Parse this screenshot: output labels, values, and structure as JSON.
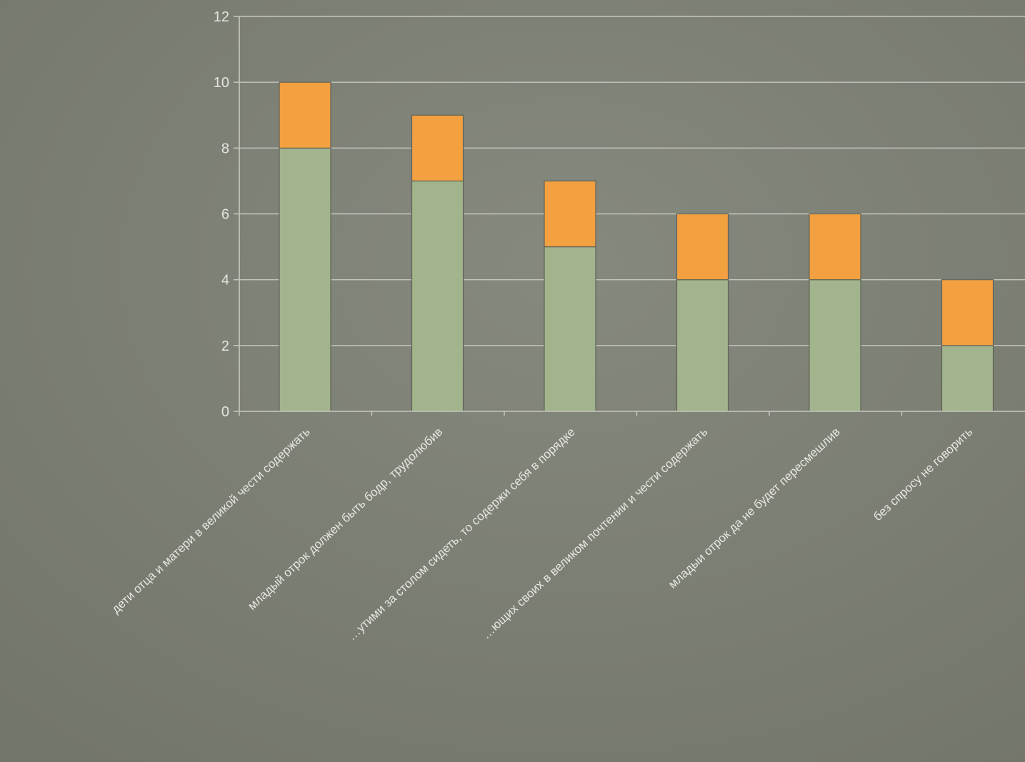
{
  "chart_data": {
    "type": "bar",
    "stacked": true,
    "categories": [
      "дети отца и матери в великой чести содержать",
      "младый отрок должен быть бодр, трудолюбив",
      "…утими за столом сидеть, то содержи себя в порядке",
      "…ющих своих в великом почтении и чести содержать",
      "младыи отрок да не будет пересмешлив",
      "без спросу не говорить"
    ],
    "series": [
      {
        "values": [
          8,
          7,
          5,
          4,
          4,
          2
        ],
        "color": "#a2b48c"
      },
      {
        "values": [
          2,
          2,
          2,
          2,
          2,
          2
        ],
        "color": "#f3a040"
      }
    ],
    "ylim": [
      0,
      12
    ],
    "yticks": [
      "0",
      "2",
      "4",
      "6",
      "8",
      "10",
      "12"
    ],
    "grid": true,
    "legend": "none",
    "colors": {
      "background": "#7d8074",
      "gridline": "#d2d4cc",
      "axis": "#c7c9c0",
      "bar_border": "#5f6258"
    }
  }
}
